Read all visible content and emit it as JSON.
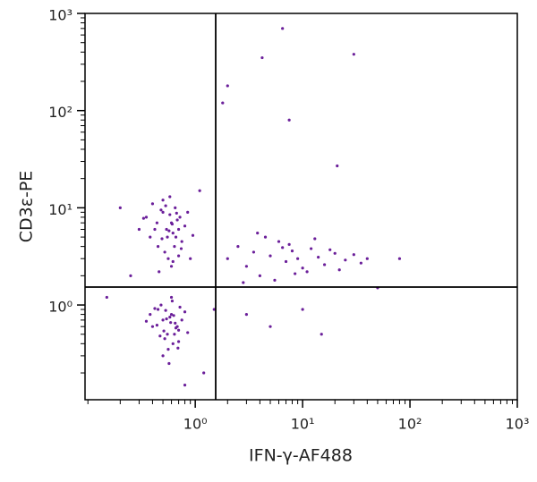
{
  "chart_data": {
    "type": "scatter",
    "x_label": "IFN-γ-AF488",
    "y_label": "CD3ε-PE",
    "log_x": true,
    "log_y": true,
    "xlim": [
      0.094,
      1000
    ],
    "ylim": [
      0.106,
      1000
    ],
    "xticks": [
      {
        "value": 1,
        "label": "10⁰"
      },
      {
        "value": 10,
        "label": "10¹"
      },
      {
        "value": 100,
        "label": "10²"
      },
      {
        "value": 1000,
        "label": "10³"
      }
    ],
    "yticks": [
      {
        "value": 1,
        "label": "10⁰"
      },
      {
        "value": 10,
        "label": "10¹"
      },
      {
        "value": 100,
        "label": "10²"
      },
      {
        "value": 1000,
        "label": "10³"
      }
    ],
    "xminorticks": [
      0.1,
      0.2,
      0.3,
      0.4,
      0.5,
      0.6,
      0.7,
      0.8,
      0.9,
      2,
      3,
      4,
      5,
      6,
      7,
      8,
      9,
      20,
      30,
      40,
      50,
      60,
      70,
      80,
      90,
      200,
      300,
      400,
      500,
      600,
      700,
      800,
      900
    ],
    "yminorticks": [
      0.2,
      0.3,
      0.4,
      0.5,
      0.6,
      0.7,
      0.8,
      0.9,
      2,
      3,
      4,
      5,
      6,
      7,
      8,
      9,
      20,
      30,
      40,
      50,
      60,
      70,
      80,
      90,
      200,
      300,
      400,
      500,
      600,
      700,
      800,
      900
    ],
    "gate_x": 1.55,
    "gate_y": 1.53,
    "color": "#6b1f9a",
    "x": [
      0.35,
      0.42,
      0.5,
      0.55,
      0.6,
      0.65,
      0.7,
      0.45,
      0.52,
      0.58,
      0.62,
      0.68,
      0.75,
      0.8,
      0.4,
      0.48,
      0.56,
      0.64,
      0.72,
      0.38,
      0.5,
      0.6,
      0.7,
      0.44,
      0.54,
      0.66,
      0.3,
      0.85,
      0.9,
      0.46,
      0.58,
      0.62,
      0.53,
      0.67,
      0.49,
      0.57,
      0.61,
      0.74,
      0.33,
      0.95,
      0.4,
      0.5,
      0.55,
      0.6,
      0.65,
      0.7,
      0.45,
      0.52,
      0.58,
      0.62,
      0.68,
      0.75,
      0.8,
      0.48,
      0.56,
      0.64,
      0.72,
      0.38,
      0.6,
      0.5,
      0.66,
      0.44,
      0.54,
      0.7,
      0.35,
      0.85,
      0.57,
      0.61,
      0.53,
      0.47,
      0.63,
      0.59,
      0.51,
      0.69,
      0.42,
      2,
      2.5,
      3,
      3.5,
      4,
      5,
      6,
      7,
      8,
      9,
      10,
      12,
      14,
      16,
      20,
      25,
      30,
      35,
      4.5,
      5.5,
      6.5,
      7.5,
      11,
      13,
      18,
      22,
      2.8,
      3.8,
      8.5,
      40,
      6.5,
      4.2,
      2.0,
      1.8,
      21,
      30,
      7.5,
      0.25,
      0.2,
      0.15,
      1.2,
      1.5,
      3,
      10,
      15,
      50,
      80,
      5,
      0.8,
      1.1
    ],
    "values": [
      8,
      6,
      9,
      5,
      7,
      10,
      6,
      4,
      3.5,
      8.5,
      5.5,
      7.5,
      4.5,
      6.5,
      11,
      9.5,
      3,
      4,
      8,
      5,
      12,
      2.5,
      3.2,
      7,
      6,
      5,
      6,
      9,
      3,
      2.2,
      13,
      2.8,
      10.5,
      8.8,
      4.8,
      5.8,
      6.8,
      3.8,
      7.8,
      5.2,
      0.6,
      0.7,
      0.5,
      0.8,
      0.65,
      0.55,
      0.9,
      0.45,
      0.75,
      0.4,
      0.6,
      0.7,
      0.85,
      1.0,
      0.35,
      0.5,
      0.95,
      0.8,
      1.2,
      0.3,
      0.58,
      0.62,
      0.72,
      0.42,
      0.68,
      0.52,
      0.25,
      1.1,
      0.88,
      0.48,
      0.78,
      0.66,
      0.54,
      0.36,
      0.92,
      3,
      4,
      2.5,
      3.5,
      2,
      3.2,
      4.5,
      2.8,
      3.6,
      3,
      2.4,
      3.8,
      3.1,
      2.6,
      3.4,
      2.9,
      3.3,
      2.7,
      5,
      1.8,
      3.9,
      4.2,
      2.2,
      4.8,
      3.7,
      2.3,
      1.7,
      5.5,
      2.1,
      3,
      700,
      350,
      180,
      120,
      27,
      380,
      80,
      2,
      10,
      1.2,
      0.2,
      0.9,
      0.8,
      0.9,
      0.5,
      1.5,
      3,
      0.6,
      0.15,
      15
    ]
  }
}
